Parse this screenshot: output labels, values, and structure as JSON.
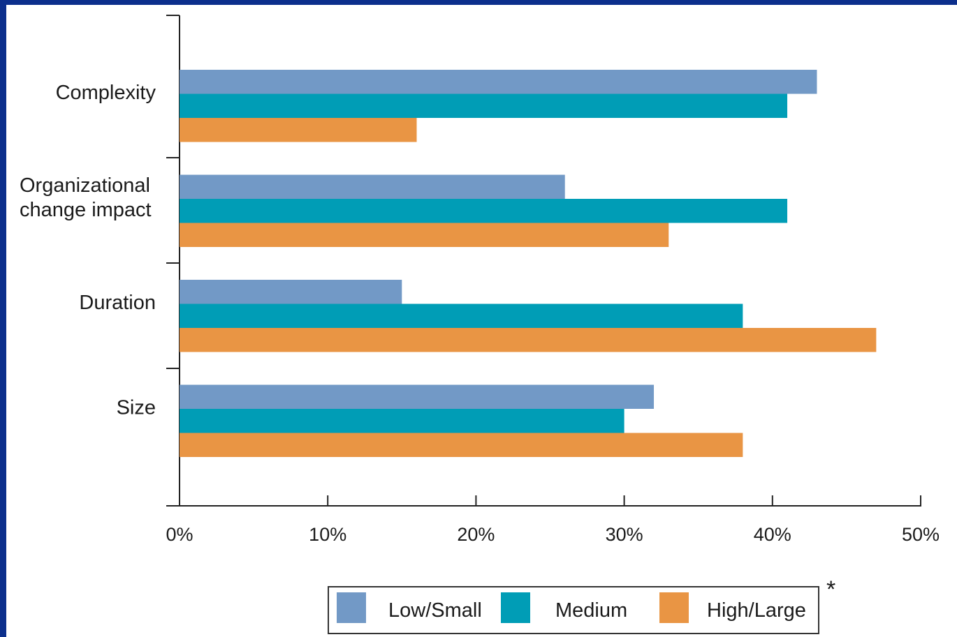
{
  "chart_data": {
    "type": "bar",
    "orientation": "horizontal",
    "categories": [
      "Complexity",
      "Organizational change impact",
      "Duration",
      "Size"
    ],
    "category_lines": [
      [
        "Complexity"
      ],
      [
        "Organizational",
        "change impact"
      ],
      [
        "Duration"
      ],
      [
        "Size"
      ]
    ],
    "series": [
      {
        "name": "Low/Small",
        "color": "#7299c6",
        "values": [
          43,
          26,
          15,
          32
        ]
      },
      {
        "name": "Medium",
        "color": "#009db6",
        "values": [
          41,
          41,
          38,
          30
        ]
      },
      {
        "name": "High/Large",
        "color": "#e99544",
        "values": [
          16,
          33,
          47,
          38
        ]
      }
    ],
    "xlim": [
      0,
      50
    ],
    "xticks": [
      0,
      10,
      20,
      30,
      40,
      50
    ],
    "xtick_labels": [
      "0%",
      "10%",
      "20%",
      "30%",
      "40%",
      "50%"
    ],
    "grid": false,
    "legend_position": "bottom-right",
    "note_marker": "*"
  }
}
